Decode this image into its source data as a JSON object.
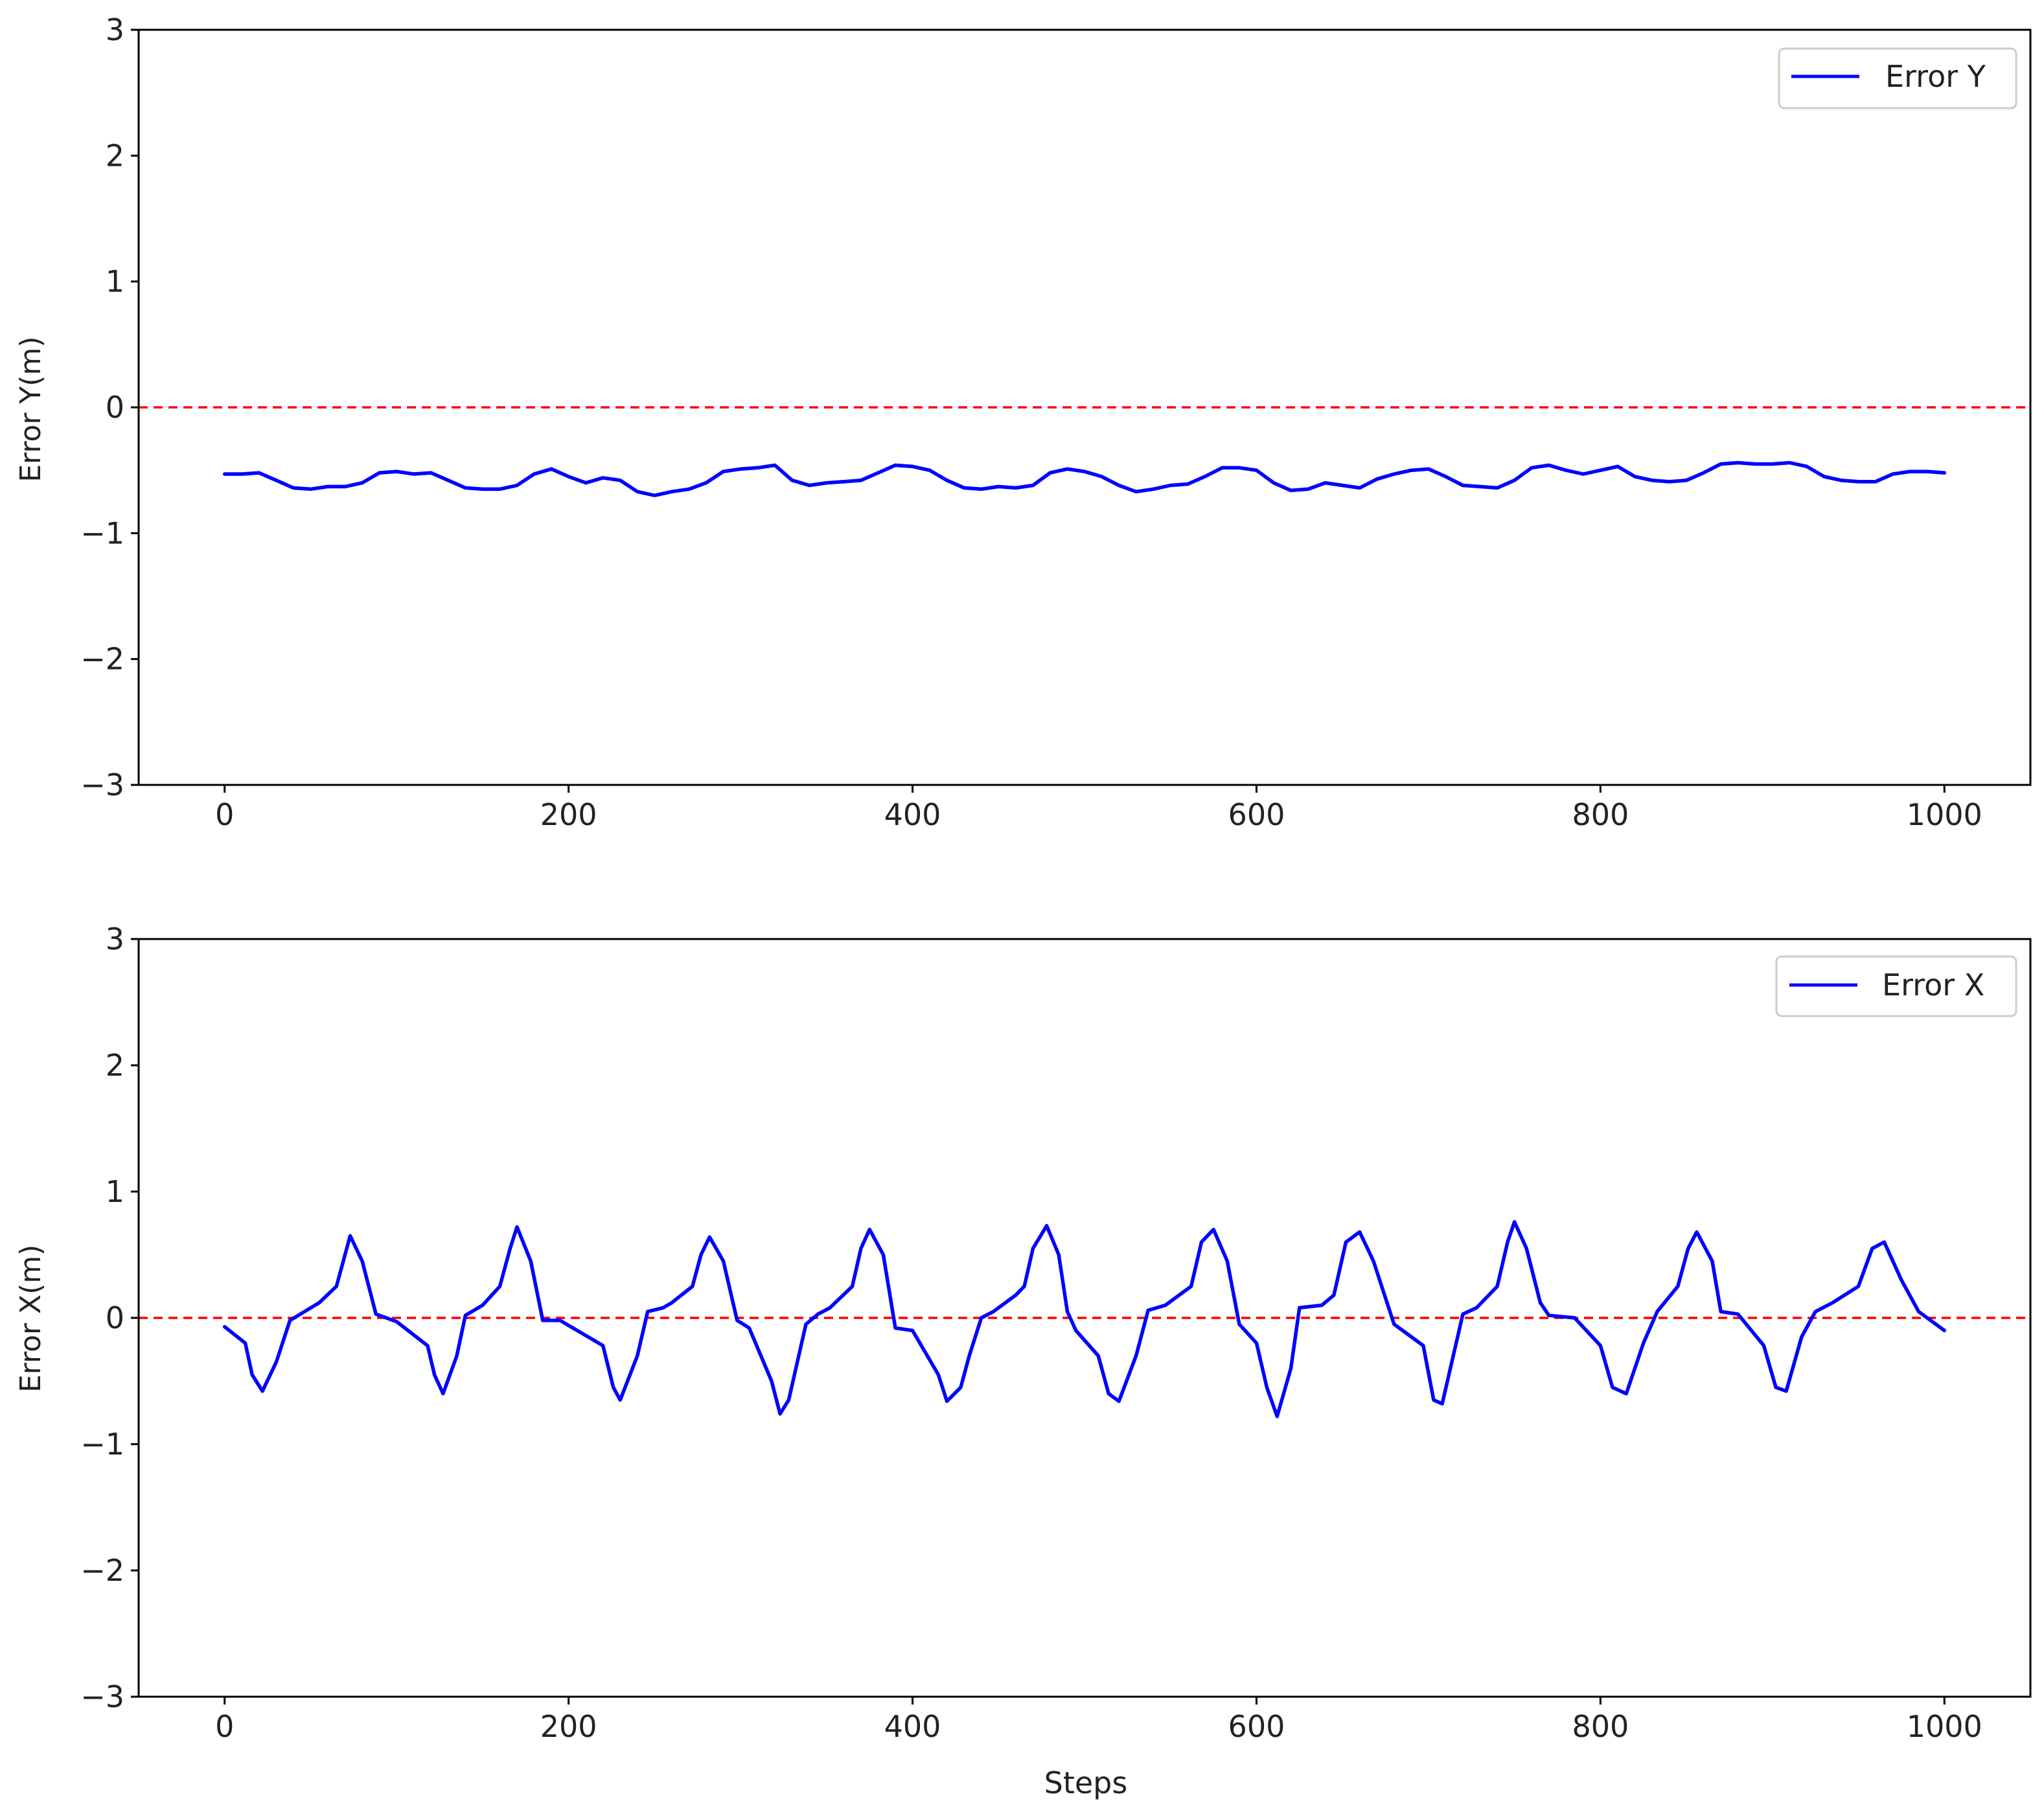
{
  "chart_data": [
    {
      "type": "line",
      "title": "",
      "xlabel": "",
      "ylabel": "Error Y(m)",
      "xlim": [
        -50,
        1050
      ],
      "ylim": [
        -3,
        3
      ],
      "xticks": [
        0,
        200,
        400,
        600,
        800,
        1000
      ],
      "xtick_labels": [
        "0",
        "200",
        "400",
        "600",
        "800",
        "1000"
      ],
      "yticks": [
        -3,
        -2,
        -1,
        0,
        1,
        2,
        3
      ],
      "ytick_labels": [
        "−3",
        "−2",
        "−1",
        "0",
        "1",
        "2",
        "3"
      ],
      "grid": false,
      "legend": {
        "position": "top-right",
        "entries": [
          "Error Y"
        ]
      },
      "reference_line": {
        "y": 0,
        "style": "dashed",
        "color": "#ff0000"
      },
      "series": [
        {
          "name": "Error Y",
          "color": "#0000ff",
          "x": [
            0,
            10,
            20,
            30,
            40,
            50,
            60,
            70,
            80,
            90,
            100,
            110,
            120,
            130,
            140,
            150,
            160,
            170,
            180,
            190,
            200,
            210,
            220,
            230,
            240,
            250,
            260,
            270,
            280,
            290,
            300,
            310,
            320,
            330,
            340,
            350,
            360,
            370,
            380,
            390,
            400,
            410,
            420,
            430,
            440,
            450,
            460,
            470,
            480,
            490,
            500,
            510,
            520,
            530,
            540,
            550,
            560,
            570,
            580,
            590,
            600,
            610,
            620,
            630,
            640,
            650,
            660,
            670,
            680,
            690,
            700,
            710,
            720,
            730,
            740,
            750,
            760,
            770,
            780,
            790,
            800,
            810,
            820,
            830,
            840,
            850,
            860,
            870,
            880,
            890,
            900,
            910,
            920,
            930,
            940,
            950,
            960,
            970,
            980,
            990,
            1000
          ],
          "values": [
            -0.53,
            -0.53,
            -0.52,
            -0.58,
            -0.64,
            -0.65,
            -0.63,
            -0.63,
            -0.6,
            -0.52,
            -0.51,
            -0.53,
            -0.52,
            -0.58,
            -0.64,
            -0.65,
            -0.65,
            -0.62,
            -0.53,
            -0.49,
            -0.55,
            -0.6,
            -0.56,
            -0.58,
            -0.67,
            -0.7,
            -0.67,
            -0.65,
            -0.6,
            -0.51,
            -0.49,
            -0.48,
            -0.46,
            -0.58,
            -0.62,
            -0.6,
            -0.59,
            -0.58,
            -0.52,
            -0.46,
            -0.47,
            -0.5,
            -0.58,
            -0.64,
            -0.65,
            -0.63,
            -0.64,
            -0.62,
            -0.52,
            -0.49,
            -0.51,
            -0.55,
            -0.62,
            -0.67,
            -0.65,
            -0.62,
            -0.61,
            -0.55,
            -0.48,
            -0.48,
            -0.5,
            -0.6,
            -0.66,
            -0.65,
            -0.6,
            -0.62,
            -0.64,
            -0.57,
            -0.53,
            -0.5,
            -0.49,
            -0.55,
            -0.62,
            -0.63,
            -0.64,
            -0.58,
            -0.48,
            -0.46,
            -0.5,
            -0.53,
            -0.5,
            -0.47,
            -0.55,
            -0.58,
            -0.59,
            -0.58,
            -0.52,
            -0.45,
            -0.44,
            -0.45,
            -0.45,
            -0.44,
            -0.47,
            -0.55,
            -0.58,
            -0.59,
            -0.59,
            -0.53,
            -0.51,
            -0.51,
            -0.52
          ]
        }
      ]
    },
    {
      "type": "line",
      "title": "",
      "xlabel": "Steps",
      "ylabel": "Error X(m)",
      "xlim": [
        -50,
        1050
      ],
      "ylim": [
        -3,
        3
      ],
      "xticks": [
        0,
        200,
        400,
        600,
        800,
        1000
      ],
      "xtick_labels": [
        "0",
        "200",
        "400",
        "600",
        "800",
        "1000"
      ],
      "yticks": [
        -3,
        -2,
        -1,
        0,
        1,
        2,
        3
      ],
      "ytick_labels": [
        "−3",
        "−2",
        "−1",
        "0",
        "1",
        "2",
        "3"
      ],
      "grid": false,
      "legend": {
        "position": "top-right",
        "entries": [
          "Error X"
        ]
      },
      "reference_line": {
        "y": 0,
        "style": "dashed",
        "color": "#ff0000"
      },
      "series": [
        {
          "name": "Error X",
          "color": "#0000ff",
          "x": [
            0,
            12,
            16,
            22,
            30,
            38,
            55,
            65,
            73,
            80,
            88,
            100,
            118,
            122,
            127,
            135,
            140,
            150,
            160,
            166,
            170,
            178,
            185,
            195,
            220,
            226,
            230,
            240,
            246,
            255,
            260,
            272,
            277,
            282,
            290,
            298,
            305,
            318,
            323,
            328,
            338,
            345,
            352,
            365,
            370,
            375,
            383,
            390,
            400,
            415,
            420,
            428,
            433,
            440,
            447,
            460,
            465,
            470,
            478,
            485,
            490,
            495,
            508,
            514,
            520,
            530,
            537,
            547,
            555,
            562,
            568,
            575,
            583,
            590,
            600,
            606,
            612,
            620,
            625,
            638,
            645,
            652,
            660,
            668,
            680,
            697,
            703,
            708,
            720,
            728,
            740,
            746,
            750,
            757,
            765,
            770,
            785,
            800,
            807,
            815,
            825,
            833,
            845,
            851,
            856,
            865,
            870,
            880,
            895,
            902,
            908,
            917,
            925,
            935,
            950,
            958,
            965,
            975,
            985,
            1000
          ],
          "values": [
            -0.07,
            -0.2,
            -0.45,
            -0.58,
            -0.35,
            -0.02,
            0.12,
            0.25,
            0.65,
            0.45,
            0.03,
            -0.03,
            -0.22,
            -0.45,
            -0.6,
            -0.3,
            0.02,
            0.1,
            0.25,
            0.55,
            0.72,
            0.45,
            -0.02,
            -0.02,
            -0.22,
            -0.55,
            -0.65,
            -0.3,
            0.05,
            0.08,
            0.12,
            0.25,
            0.5,
            0.64,
            0.45,
            -0.02,
            -0.08,
            -0.5,
            -0.76,
            -0.65,
            -0.05,
            0.03,
            0.08,
            0.25,
            0.55,
            0.7,
            0.5,
            -0.08,
            -0.1,
            -0.45,
            -0.66,
            -0.55,
            -0.3,
            0.0,
            0.05,
            0.18,
            0.25,
            0.55,
            0.73,
            0.5,
            0.05,
            -0.1,
            -0.3,
            -0.6,
            -0.66,
            -0.3,
            0.06,
            0.1,
            0.18,
            0.25,
            0.6,
            0.7,
            0.45,
            -0.05,
            -0.2,
            -0.55,
            -0.78,
            -0.4,
            0.08,
            0.1,
            0.18,
            0.6,
            0.68,
            0.45,
            -0.05,
            -0.22,
            -0.65,
            -0.68,
            0.03,
            0.08,
            0.25,
            0.6,
            0.76,
            0.55,
            0.12,
            0.02,
            0.0,
            -0.22,
            -0.55,
            -0.6,
            -0.2,
            0.05,
            0.25,
            0.55,
            0.68,
            0.45,
            0.05,
            0.03,
            -0.22,
            -0.55,
            -0.58,
            -0.15,
            0.05,
            0.12,
            0.25,
            0.55,
            0.6,
            0.3,
            0.05,
            -0.1
          ]
        }
      ]
    }
  ]
}
